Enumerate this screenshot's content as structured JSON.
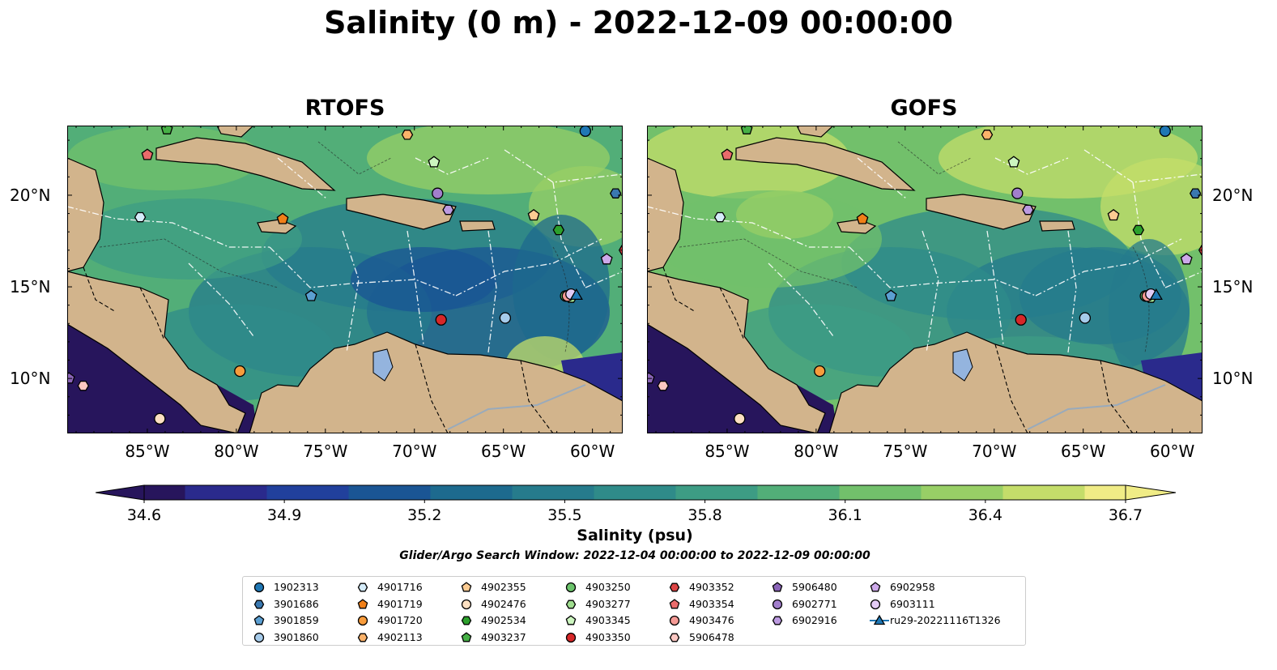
{
  "title": "Salinity (0 m) - 2022-12-09 00:00:00",
  "panels": [
    {
      "title": "RTOFS"
    },
    {
      "title": "GOFS"
    }
  ],
  "axes": {
    "x_ticks": [
      "85°W",
      "80°W",
      "75°W",
      "70°W",
      "65°W",
      "60°W"
    ],
    "y_ticks": [
      "20°N",
      "15°N",
      "10°N"
    ],
    "lon_range": [
      -89.5,
      -58.3
    ],
    "lat_range": [
      7.0,
      23.8
    ]
  },
  "colorbar": {
    "label": "Salinity (psu)",
    "ticks": [
      "34.6",
      "34.9",
      "35.2",
      "35.5",
      "35.8",
      "36.1",
      "36.4",
      "36.7"
    ],
    "range": [
      34.6,
      36.7
    ],
    "colors": [
      "#27155c",
      "#2a2a8c",
      "#21409c",
      "#1a5594",
      "#1d6a8e",
      "#267b8c",
      "#2f8b89",
      "#3d9c84",
      "#52ae78",
      "#72c06b",
      "#98cf66",
      "#c4dd6a",
      "#f0ec86"
    ]
  },
  "search_window": "Glider/Argo Search Window: 2022-12-04 00:00:00 to 2022-12-09 00:00:00",
  "colors": {
    "land": "#d2b48c",
    "low_salinity": "#27155c",
    "high_salinity": "#fdf08a",
    "lake": "#94b4de"
  },
  "legend": {
    "columns": [
      [
        {
          "label": "1902313",
          "marker": "circle",
          "color": "#1f77b4"
        },
        {
          "label": "3901686",
          "marker": "hexagon",
          "color": "#3a78b0"
        },
        {
          "label": "3901859",
          "marker": "pentagon",
          "color": "#5b9fd2"
        },
        {
          "label": "3901860",
          "marker": "circle",
          "color": "#a6cbea"
        }
      ],
      [
        {
          "label": "4901716",
          "marker": "hexagon",
          "color": "#d5ecfa"
        },
        {
          "label": "4901719",
          "marker": "pentagon",
          "color": "#f07f18"
        },
        {
          "label": "4901720",
          "marker": "circle",
          "color": "#f89c3c"
        },
        {
          "label": "4902113",
          "marker": "hexagon",
          "color": "#fbb26a"
        }
      ],
      [
        {
          "label": "4902355",
          "marker": "pentagon",
          "color": "#fbcb92"
        },
        {
          "label": "4902476",
          "marker": "circle",
          "color": "#fde0c2"
        },
        {
          "label": "4902534",
          "marker": "hexagon",
          "color": "#2ca02c"
        },
        {
          "label": "4903237",
          "marker": "pentagon",
          "color": "#46b046"
        }
      ],
      [
        {
          "label": "4903250",
          "marker": "circle",
          "color": "#6cc46c"
        },
        {
          "label": "4903277",
          "marker": "hexagon",
          "color": "#9fdd8f"
        },
        {
          "label": "4903345",
          "marker": "pentagon",
          "color": "#ccf5bf"
        },
        {
          "label": "4903350",
          "marker": "circle",
          "color": "#d62728"
        }
      ],
      [
        {
          "label": "4903352",
          "marker": "hexagon",
          "color": "#dd4444"
        },
        {
          "label": "4903354",
          "marker": "pentagon",
          "color": "#ea6b6b"
        },
        {
          "label": "4903476",
          "marker": "circle",
          "color": "#f59a95"
        },
        {
          "label": "5906478",
          "marker": "hexagon",
          "color": "#fcc7c2"
        }
      ],
      [
        {
          "label": "5906480",
          "marker": "pentagon",
          "color": "#8a64b8"
        },
        {
          "label": "6902771",
          "marker": "circle",
          "color": "#a27fcc"
        },
        {
          "label": "6902916",
          "marker": "hexagon",
          "color": "#bc9ae0"
        }
      ],
      [
        {
          "label": "6902958",
          "marker": "pentagon",
          "color": "#cda9ea"
        },
        {
          "label": "6903111",
          "marker": "circle",
          "color": "#e3cbf5"
        },
        {
          "label": "ru29-20221116T1326",
          "marker": "triangle-line",
          "color": "#1f77b4"
        }
      ]
    ]
  },
  "floats": [
    {
      "id": "1902313",
      "lon": -60.4,
      "lat": 23.5
    },
    {
      "id": "3901686",
      "lon": -58.7,
      "lat": 20.1
    },
    {
      "id": "3901859",
      "lon": -75.8,
      "lat": 14.5
    },
    {
      "id": "3901860",
      "lon": -64.9,
      "lat": 13.3
    },
    {
      "id": "4901716",
      "lon": -85.4,
      "lat": 18.8
    },
    {
      "id": "4901719",
      "lon": -77.4,
      "lat": 18.7
    },
    {
      "id": "4901720",
      "lon": -79.8,
      "lat": 10.4
    },
    {
      "id": "4902113",
      "lon": -70.4,
      "lat": 23.3
    },
    {
      "id": "4902355",
      "lon": -63.3,
      "lat": 18.9
    },
    {
      "id": "4902476",
      "lon": -84.3,
      "lat": 7.8
    },
    {
      "id": "4902534",
      "lon": -61.9,
      "lat": 18.1
    },
    {
      "id": "4903237",
      "lon": -83.9,
      "lat": 23.6
    },
    {
      "id": "4903250",
      "lon": -61.5,
      "lat": 14.5
    },
    {
      "id": "4903277",
      "lon": -61.2,
      "lat": 14.4
    },
    {
      "id": "4903345",
      "lon": -68.9,
      "lat": 21.8
    },
    {
      "id": "4903350",
      "lon": -68.5,
      "lat": 13.2
    },
    {
      "id": "4903352",
      "lon": -58.2,
      "lat": 17.0
    },
    {
      "id": "4903354",
      "lon": -85.0,
      "lat": 22.2
    },
    {
      "id": "4903476",
      "lon": -61.4,
      "lat": 14.5
    },
    {
      "id": "5906478",
      "lon": -88.6,
      "lat": 9.6
    },
    {
      "id": "5906480",
      "lon": -89.4,
      "lat": 10.0
    },
    {
      "id": "6902771",
      "lon": -68.7,
      "lat": 20.1
    },
    {
      "id": "6902916",
      "lon": -68.1,
      "lat": 19.2
    },
    {
      "id": "6902958",
      "lon": -59.2,
      "lat": 16.5
    },
    {
      "id": "6903111",
      "lon": -61.2,
      "lat": 14.6
    },
    {
      "id": "ru29-20221116T1326",
      "lon": -60.9,
      "lat": 14.5
    }
  ]
}
